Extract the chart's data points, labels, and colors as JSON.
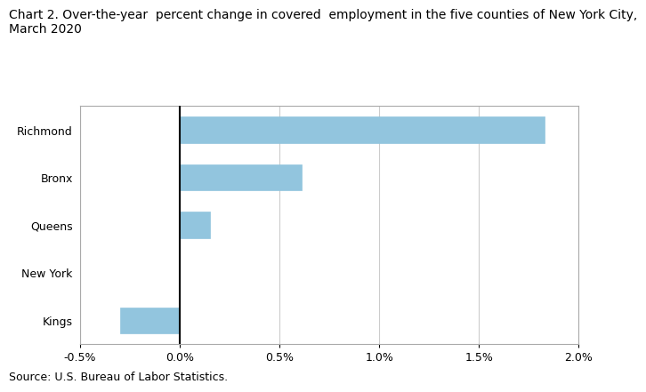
{
  "title_line1": "Chart 2. Over-the-year  percent change in covered  employment in the five counties of New York City,",
  "title_line2": "March 2020",
  "categories": [
    "Richmond",
    "Bronx",
    "Queens",
    "New York",
    "Kings"
  ],
  "values": [
    1.83,
    0.61,
    0.15,
    0.0,
    -0.3
  ],
  "bar_color": "#92C5DE",
  "bar_edge_color": "#92C5DE",
  "xlim_left": -0.5,
  "xlim_right": 2.0,
  "xtick_vals": [
    -0.5,
    0.0,
    0.5,
    1.0,
    1.5,
    2.0
  ],
  "xticklabels": [
    "-0.5%",
    "0.0%",
    "0.5%",
    "1.0%",
    "1.5%",
    "2.0%"
  ],
  "source_text": "Source: U.S. Bureau of Labor Statistics.",
  "background_color": "#ffffff",
  "grid_color": "#cccccc",
  "title_fontsize": 10,
  "axis_fontsize": 9,
  "source_fontsize": 9,
  "bar_height": 0.55
}
